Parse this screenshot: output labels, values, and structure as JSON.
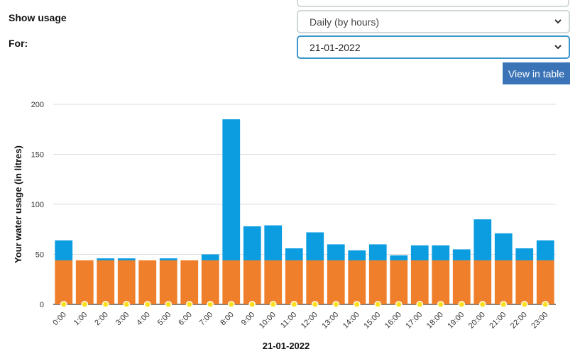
{
  "controls": {
    "show_usage_label": "Show usage",
    "for_label": "For:",
    "period_select": "Daily (by hours)",
    "date_select": "21-01-2022",
    "view_table_button": "View in table"
  },
  "chart_data": {
    "type": "bar",
    "stacked": true,
    "categories": [
      "0:00",
      "1:00",
      "2:00",
      "3:00",
      "4:00",
      "5:00",
      "6:00",
      "7:00",
      "8:00",
      "9:00",
      "10:00",
      "11:00",
      "12:00",
      "13:00",
      "14:00",
      "15:00",
      "16:00",
      "17:00",
      "18:00",
      "19:00",
      "20:00",
      "21:00",
      "22:00",
      "23:00"
    ],
    "series": [
      {
        "color": "#ef7f2a",
        "values": [
          44,
          44,
          44,
          44,
          44,
          44,
          44,
          44,
          44,
          44,
          44,
          44,
          44,
          44,
          44,
          44,
          44,
          44,
          44,
          44,
          44,
          44,
          44,
          44
        ]
      },
      {
        "color": "#0b9de0",
        "values": [
          20,
          0,
          2,
          2,
          0,
          2,
          0,
          6,
          141,
          34,
          35,
          12,
          28,
          16,
          10,
          16,
          5,
          15,
          15,
          11,
          41,
          27,
          12,
          20
        ]
      },
      {
        "color": "#ffe020",
        "marker_only": true,
        "values": [
          0,
          0,
          0,
          0,
          0,
          0,
          0,
          0,
          0,
          0,
          0,
          0,
          0,
          0,
          0,
          0,
          0,
          0,
          0,
          0,
          0,
          0,
          0,
          0
        ]
      }
    ],
    "ylabel": "Your water usage (in litres)",
    "xlabel": "21-01-2022",
    "ylim": [
      0,
      200
    ],
    "yticks": [
      0,
      50,
      100,
      150,
      200
    ],
    "grid": true
  }
}
